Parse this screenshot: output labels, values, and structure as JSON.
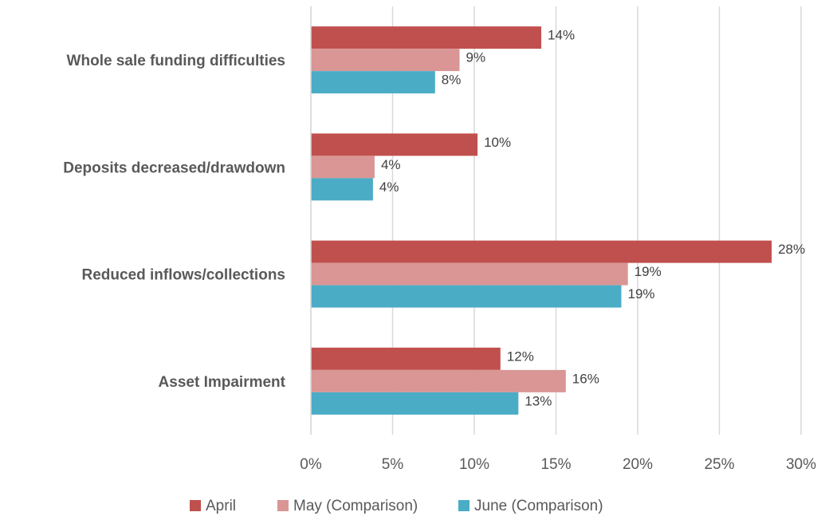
{
  "chart_data": {
    "type": "bar",
    "orientation": "horizontal",
    "categories": [
      "Whole sale funding difficulties",
      "Deposits decreased/drawdown",
      "Reduced inflows/collections",
      "Asset Impairment"
    ],
    "series": [
      {
        "name": "April",
        "color": "#c0504d",
        "values": [
          14.1,
          10.2,
          28.2,
          11.6
        ],
        "value_labels": [
          "14%",
          "10%",
          "28%",
          "12%"
        ]
      },
      {
        "name": "May (Comparison)",
        "color": "#d99694",
        "values": [
          9.1,
          3.9,
          19.4,
          15.6
        ],
        "value_labels": [
          "9%",
          "4%",
          "19%",
          "16%"
        ]
      },
      {
        "name": "June (Comparison)",
        "color": "#4bacc6",
        "values": [
          7.6,
          3.8,
          19.0,
          12.7
        ],
        "value_labels": [
          "8%",
          "4%",
          "19%",
          "13%"
        ]
      }
    ],
    "xlim": [
      0,
      30
    ],
    "xticks": [
      {
        "value": 0,
        "label": "0%"
      },
      {
        "value": 5,
        "label": "5%"
      },
      {
        "value": 10,
        "label": "10%"
      },
      {
        "value": 15,
        "label": "15%"
      },
      {
        "value": 20,
        "label": "20%"
      },
      {
        "value": 25,
        "label": "25%"
      },
      {
        "value": 30,
        "label": "30%"
      }
    ],
    "grid": true,
    "legend": "bottom"
  }
}
